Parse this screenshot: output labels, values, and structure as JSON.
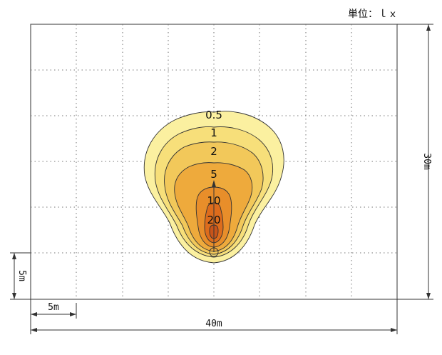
{
  "unit_label": "単位：ｌｘ",
  "dimensions": {
    "width": "40m",
    "height": "30m",
    "grid_x": "5m",
    "grid_y": "5m"
  },
  "contours": [
    {
      "level": "0.5",
      "fill": "#fbf0a0"
    },
    {
      "level": "1",
      "fill": "#f7df7a"
    },
    {
      "level": "2",
      "fill": "#f2c85a"
    },
    {
      "level": "5",
      "fill": "#eeaa3c"
    },
    {
      "level": "10",
      "fill": "#e88e2a"
    },
    {
      "level": "20",
      "fill": "#dd6c1c"
    }
  ]
}
